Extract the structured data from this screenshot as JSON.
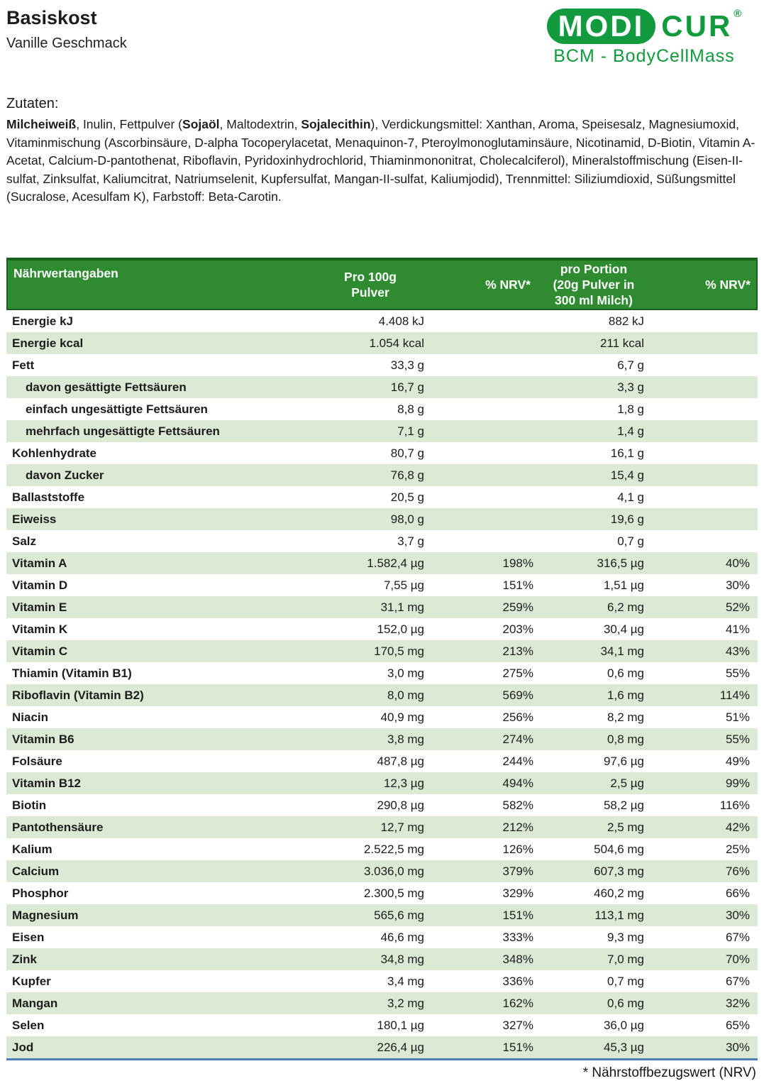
{
  "product": {
    "title": "Basiskost",
    "subtitle": "Vanille Geschmack"
  },
  "logo": {
    "word1": "MODI",
    "word2": "CUR",
    "registered": "®",
    "tagline": "BCM - BodyCellMass"
  },
  "colors": {
    "brand_green": "#119a3e",
    "header_bg": "#2e8b30",
    "header_border": "#17631c",
    "row_alt": "#dcead5",
    "bottom_line": "#4a7ebb"
  },
  "ingredients": {
    "heading": "Zutaten:",
    "segments": [
      {
        "text": "Milcheiweiß",
        "bold": true
      },
      {
        "text": ",  Inulin,  Fettpulver (",
        "bold": false
      },
      {
        "text": "Sojaöl",
        "bold": true
      },
      {
        "text": ", Maltodextrin, ",
        "bold": false
      },
      {
        "text": "Sojalecithin",
        "bold": true
      },
      {
        "text": "),  Verdickungsmittel: Xanthan,  Aroma,  Speisesalz,  Magnesiumoxid,  Vitaminmischung (Ascorbinsäure, D-alpha Tocoperylacetat, Menaquinon-7, Pteroylmonoglutaminsäure, Nicotinamid, D-Biotin, Vitamin A-Acetat, Calcium-D-pantothenat, Riboflavin, Pyridoxinhydrochlorid, Thiaminmononitrat, Cholecalciferol),  Mineralstoffmischung (Eisen-II-sulfat, Zinksulfat, Kaliumcitrat, Natriumselenit, Kupfersulfat, Mangan-II-sulfat, Kaliumjodid),  Trennmittel: Siliziumdioxid,  Süßungsmittel (Sucralose, Acesulfam K),  Farbstoff: Beta-Carotin.",
        "bold": false
      }
    ]
  },
  "table": {
    "header": {
      "label": "Nährwertangaben",
      "per100g": "Pro 100g\nPulver",
      "nrv1": "% NRV*",
      "portion": "pro Portion\n(20g Pulver in\n300 ml Milch)",
      "nrv2": "% NRV*"
    },
    "rows": [
      {
        "label": "Energie kJ",
        "indent": false,
        "per100g": "4.408 kJ",
        "nrv1": "",
        "portion": "882 kJ",
        "nrv2": ""
      },
      {
        "label": "Energie kcal",
        "indent": false,
        "per100g": "1.054 kcal",
        "nrv1": "",
        "portion": "211 kcal",
        "nrv2": ""
      },
      {
        "label": "Fett",
        "indent": false,
        "per100g": "33,3 g",
        "nrv1": "",
        "portion": "6,7 g",
        "nrv2": ""
      },
      {
        "label": "davon gesättigte Fettsäuren",
        "indent": true,
        "per100g": "16,7 g",
        "nrv1": "",
        "portion": "3,3 g",
        "nrv2": ""
      },
      {
        "label": "einfach ungesättigte Fettsäuren",
        "indent": true,
        "per100g": "8,8 g",
        "nrv1": "",
        "portion": "1,8 g",
        "nrv2": ""
      },
      {
        "label": "mehrfach ungesättigte Fettsäuren",
        "indent": true,
        "per100g": "7,1 g",
        "nrv1": "",
        "portion": "1,4 g",
        "nrv2": ""
      },
      {
        "label": "Kohlenhydrate",
        "indent": false,
        "per100g": "80,7 g",
        "nrv1": "",
        "portion": "16,1 g",
        "nrv2": ""
      },
      {
        "label": "davon Zucker",
        "indent": true,
        "per100g": "76,8 g",
        "nrv1": "",
        "portion": "15,4 g",
        "nrv2": ""
      },
      {
        "label": "Ballaststoffe",
        "indent": false,
        "per100g": "20,5 g",
        "nrv1": "",
        "portion": "4,1 g",
        "nrv2": ""
      },
      {
        "label": "Eiweiss",
        "indent": false,
        "per100g": "98,0 g",
        "nrv1": "",
        "portion": "19,6 g",
        "nrv2": ""
      },
      {
        "label": "Salz",
        "indent": false,
        "per100g": "3,7 g",
        "nrv1": "",
        "portion": "0,7 g",
        "nrv2": ""
      },
      {
        "label": "Vitamin A",
        "indent": false,
        "per100g": "1.582,4 µg",
        "nrv1": "198%",
        "portion": "316,5 µg",
        "nrv2": "40%"
      },
      {
        "label": "Vitamin D",
        "indent": false,
        "per100g": "7,55 µg",
        "nrv1": "151%",
        "portion": "1,51 µg",
        "nrv2": "30%"
      },
      {
        "label": "Vitamin E",
        "indent": false,
        "per100g": "31,1 mg",
        "nrv1": "259%",
        "portion": "6,2 mg",
        "nrv2": "52%"
      },
      {
        "label": "Vitamin K",
        "indent": false,
        "per100g": "152,0 µg",
        "nrv1": "203%",
        "portion": "30,4 µg",
        "nrv2": "41%"
      },
      {
        "label": "Vitamin C",
        "indent": false,
        "per100g": "170,5 mg",
        "nrv1": "213%",
        "portion": "34,1 mg",
        "nrv2": "43%"
      },
      {
        "label": "Thiamin (Vitamin B1)",
        "indent": false,
        "per100g": "3,0 mg",
        "nrv1": "275%",
        "portion": "0,6 mg",
        "nrv2": "55%"
      },
      {
        "label": "Riboflavin (Vitamin B2)",
        "indent": false,
        "per100g": "8,0 mg",
        "nrv1": "569%",
        "portion": "1,6 mg",
        "nrv2": "114%"
      },
      {
        "label": "Niacin",
        "indent": false,
        "per100g": "40,9 mg",
        "nrv1": "256%",
        "portion": "8,2 mg",
        "nrv2": "51%"
      },
      {
        "label": "Vitamin B6",
        "indent": false,
        "per100g": "3,8 mg",
        "nrv1": "274%",
        "portion": "0,8 mg",
        "nrv2": "55%"
      },
      {
        "label": "Folsäure",
        "indent": false,
        "per100g": "487,8 µg",
        "nrv1": "244%",
        "portion": "97,6 µg",
        "nrv2": "49%"
      },
      {
        "label": "Vitamin B12",
        "indent": false,
        "per100g": "12,3 µg",
        "nrv1": "494%",
        "portion": "2,5 µg",
        "nrv2": "99%"
      },
      {
        "label": "Biotin",
        "indent": false,
        "per100g": "290,8 µg",
        "nrv1": "582%",
        "portion": "58,2 µg",
        "nrv2": "116%"
      },
      {
        "label": "Pantothensäure",
        "indent": false,
        "per100g": "12,7 mg",
        "nrv1": "212%",
        "portion": "2,5 mg",
        "nrv2": "42%"
      },
      {
        "label": "Kalium",
        "indent": false,
        "per100g": "2.522,5 mg",
        "nrv1": "126%",
        "portion": "504,6 mg",
        "nrv2": "25%"
      },
      {
        "label": "Calcium",
        "indent": false,
        "per100g": "3.036,0 mg",
        "nrv1": "379%",
        "portion": "607,3 mg",
        "nrv2": "76%"
      },
      {
        "label": "Phosphor",
        "indent": false,
        "per100g": "2.300,5 mg",
        "nrv1": "329%",
        "portion": "460,2 mg",
        "nrv2": "66%"
      },
      {
        "label": "Magnesium",
        "indent": false,
        "per100g": "565,6 mg",
        "nrv1": "151%",
        "portion": "113,1 mg",
        "nrv2": "30%"
      },
      {
        "label": "Eisen",
        "indent": false,
        "per100g": "46,6 mg",
        "nrv1": "333%",
        "portion": "9,3 mg",
        "nrv2": "67%"
      },
      {
        "label": "Zink",
        "indent": false,
        "per100g": "34,8 mg",
        "nrv1": "348%",
        "portion": "7,0 mg",
        "nrv2": "70%"
      },
      {
        "label": "Kupfer",
        "indent": false,
        "per100g": "3,4 mg",
        "nrv1": "336%",
        "portion": "0,7 mg",
        "nrv2": "67%"
      },
      {
        "label": "Mangan",
        "indent": false,
        "per100g": "3,2 mg",
        "nrv1": "162%",
        "portion": "0,6 mg",
        "nrv2": "32%"
      },
      {
        "label": "Selen",
        "indent": false,
        "per100g": "180,1 µg",
        "nrv1": "327%",
        "portion": "36,0 µg",
        "nrv2": "65%"
      },
      {
        "label": "Jod",
        "indent": false,
        "per100g": "226,4 µg",
        "nrv1": "151%",
        "portion": "45,3 µg",
        "nrv2": "30%"
      }
    ]
  },
  "footer": {
    "note": "* Nährstoffbezugswert  (NRV)"
  }
}
